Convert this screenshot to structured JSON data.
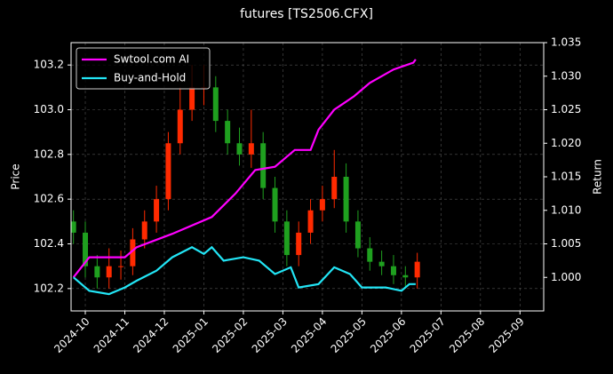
{
  "chart_data": {
    "type": "candlestick",
    "title": "futures [TS2506.CFX]",
    "y_label": "Price",
    "y2_label": "Return",
    "xlim": [
      -0.36,
      11.6
    ],
    "xticks": [
      {
        "value": 0,
        "label": "2024-10"
      },
      {
        "value": 1,
        "label": "2024-11"
      },
      {
        "value": 2,
        "label": "2024-12"
      },
      {
        "value": 3,
        "label": "2025-01"
      },
      {
        "value": 4,
        "label": "2025-02"
      },
      {
        "value": 5,
        "label": "2025-03"
      },
      {
        "value": 6,
        "label": "2025-04"
      },
      {
        "value": 7,
        "label": "2025-05"
      },
      {
        "value": 8,
        "label": "2025-06"
      },
      {
        "value": 9,
        "label": "2025-07"
      },
      {
        "value": 10,
        "label": "2025-08"
      },
      {
        "value": 11,
        "label": "2025-09"
      }
    ],
    "ylim": [
      102.1,
      103.3
    ],
    "yticks": [
      102.2,
      102.4,
      102.6,
      102.8,
      {
        "value": 103,
        "label": "103.0"
      },
      103.2
    ],
    "y2lim": [
      0.995,
      1.035
    ],
    "y2ticks": [
      {
        "value": 1,
        "label": "1.000"
      },
      1.005,
      {
        "value": 1.01,
        "label": "1.010"
      },
      1.015,
      {
        "value": 1.02,
        "label": "1.020"
      },
      1.025,
      {
        "value": 1.03,
        "label": "1.030"
      },
      1.035
    ],
    "grid": true,
    "legend": "upper left",
    "up_color": "#ff2a00",
    "down_color": "#1fa01f",
    "candles": {
      "x": [
        -0.3,
        0,
        0.3,
        0.6,
        0.9,
        1.2,
        1.5,
        1.8,
        2.1,
        2.4,
        2.7,
        3.0,
        3.3,
        3.6,
        3.9,
        4.2,
        4.5,
        4.8,
        5.1,
        5.4,
        5.7,
        6.0,
        6.3,
        6.6,
        6.9,
        7.2,
        7.5,
        7.8,
        8.1,
        8.4
      ],
      "open": [
        102.5,
        102.45,
        102.3,
        102.25,
        102.3,
        102.3,
        102.42,
        102.5,
        102.6,
        102.85,
        103.0,
        103.1,
        103.1,
        102.95,
        102.85,
        102.8,
        102.85,
        102.65,
        102.5,
        102.35,
        102.45,
        102.55,
        102.6,
        102.7,
        102.5,
        102.38,
        102.32,
        102.3,
        102.26,
        102.25
      ],
      "high": [
        102.55,
        102.5,
        102.35,
        102.38,
        102.37,
        102.47,
        102.55,
        102.66,
        102.9,
        103.1,
        103.2,
        103.2,
        103.15,
        103.0,
        102.92,
        103.0,
        102.9,
        102.7,
        102.55,
        102.5,
        102.6,
        102.66,
        102.82,
        102.76,
        102.55,
        102.43,
        102.37,
        102.35,
        102.3,
        102.36
      ],
      "low": [
        102.4,
        102.25,
        102.2,
        102.2,
        102.24,
        102.26,
        102.38,
        102.45,
        102.55,
        102.8,
        102.95,
        103.02,
        102.9,
        102.8,
        102.75,
        102.74,
        102.6,
        102.45,
        102.3,
        102.3,
        102.4,
        102.5,
        102.56,
        102.45,
        102.34,
        102.28,
        102.26,
        102.22,
        102.2,
        102.2
      ],
      "close": [
        102.45,
        102.3,
        102.25,
        102.3,
        102.3,
        102.42,
        102.5,
        102.6,
        102.85,
        103.0,
        103.1,
        103.1,
        102.95,
        102.85,
        102.8,
        102.85,
        102.65,
        102.5,
        102.35,
        102.45,
        102.55,
        102.6,
        102.7,
        102.5,
        102.38,
        102.32,
        102.3,
        102.26,
        102.25,
        102.32
      ]
    },
    "series": [
      {
        "name": "Swtool.com AI",
        "color": "#ff00ff",
        "axis": "y2",
        "x": [
          -0.3,
          0.1,
          1.0,
          1.3,
          2.2,
          3.2,
          3.8,
          4.3,
          4.8,
          5.3,
          5.7,
          5.9,
          6.3,
          6.8,
          7.2,
          7.8,
          8.3,
          8.36
        ],
        "values": [
          1.0,
          1.003,
          1.003,
          1.0045,
          1.0065,
          1.009,
          1.0125,
          1.016,
          1.0165,
          1.019,
          1.019,
          1.022,
          1.025,
          1.027,
          1.029,
          1.031,
          1.032,
          1.0325
        ]
      },
      {
        "name": "Buy-and-Hold",
        "color": "#22e5f5",
        "axis": "y2",
        "x": [
          -0.3,
          0.1,
          0.6,
          1.0,
          1.3,
          1.8,
          2.2,
          2.7,
          3.0,
          3.2,
          3.5,
          4.0,
          4.4,
          4.8,
          5.2,
          5.4,
          5.9,
          6.3,
          6.7,
          7.0,
          7.6,
          8.0,
          8.2,
          8.36
        ],
        "values": [
          1.0,
          0.998,
          0.9975,
          0.9985,
          0.9995,
          1.001,
          1.003,
          1.0045,
          1.0035,
          1.0045,
          1.0025,
          1.003,
          1.0025,
          1.0005,
          1.0015,
          0.9985,
          0.999,
          1.0015,
          1.0005,
          0.9985,
          0.9985,
          0.998,
          0.999,
          0.999
        ]
      }
    ]
  }
}
